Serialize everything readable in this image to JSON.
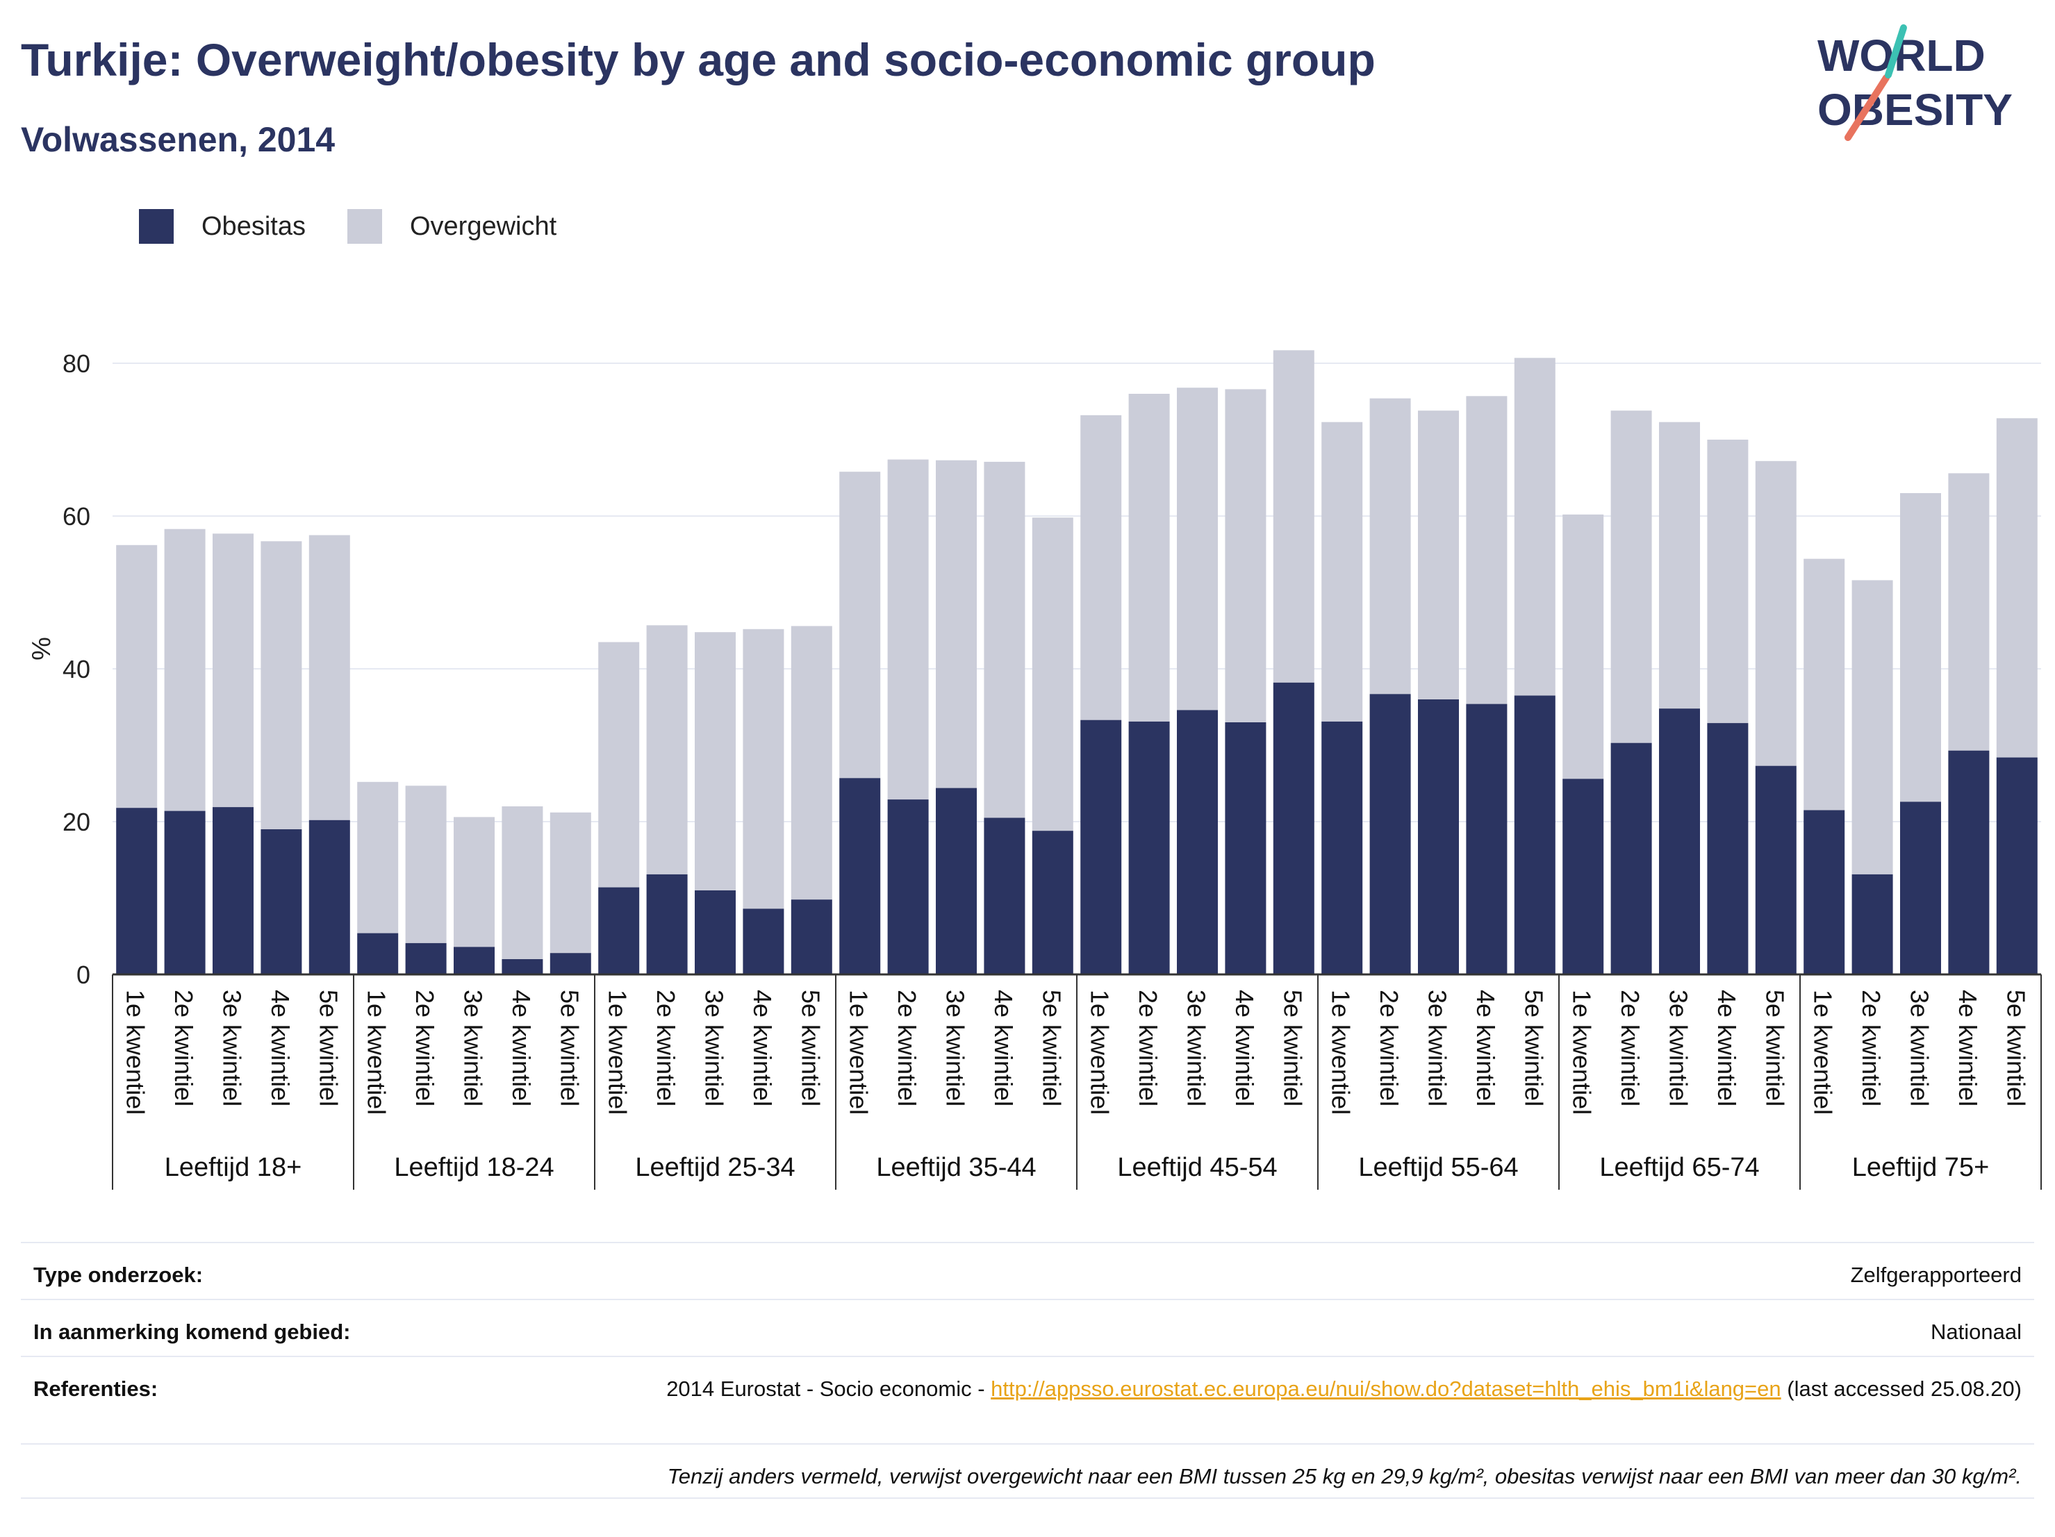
{
  "header": {
    "title": "Turkije: Overweight/obesity by age and socio-economic group",
    "subtitle": "Volwassenen, 2014"
  },
  "logo": {
    "line1": "WORLD",
    "line2": "OBESITY"
  },
  "legend": [
    {
      "label": "Obesitas",
      "color": "#2b3461"
    },
    {
      "label": "Overgewicht",
      "color": "#cbcdd9"
    }
  ],
  "chart_data": {
    "type": "bar",
    "stacked": true,
    "ylabel": "%",
    "ylim": [
      0,
      85
    ],
    "yticks": [
      0,
      20,
      40,
      60,
      80
    ],
    "grid": true,
    "legend_position": "top-left",
    "groups": [
      "Leeftijd 18+",
      "Leeftijd 18-24",
      "Leeftijd 25-34",
      "Leeftijd 35-44",
      "Leeftijd 45-54",
      "Leeftijd 55-64",
      "Leeftijd 65-74",
      "Leeftijd 75+"
    ],
    "categories": [
      "1e kwentiel",
      "2e kwintiel",
      "3e kwintiel",
      "4e kwintiel",
      "5e kwintiel"
    ],
    "series": [
      {
        "name": "Obesitas",
        "color": "#2b3461",
        "values": [
          [
            21.8,
            21.4,
            21.9,
            19.0,
            20.2
          ],
          [
            5.4,
            4.1,
            3.6,
            2.0,
            2.8
          ],
          [
            11.4,
            13.1,
            11.0,
            8.6,
            9.8
          ],
          [
            25.7,
            22.9,
            24.4,
            20.5,
            18.8
          ],
          [
            33.3,
            33.1,
            34.6,
            33.0,
            38.2
          ],
          [
            33.1,
            36.7,
            36.0,
            35.4,
            36.5
          ],
          [
            25.6,
            30.3,
            34.8,
            32.9,
            27.3
          ],
          [
            21.5,
            13.1,
            22.6,
            29.3,
            28.4
          ]
        ]
      },
      {
        "name": "Overgewicht",
        "color": "#cbcdd9",
        "values": [
          [
            34.4,
            36.9,
            35.8,
            37.7,
            37.3
          ],
          [
            19.8,
            20.6,
            17.0,
            20.0,
            18.4
          ],
          [
            32.1,
            32.6,
            33.8,
            36.6,
            35.8
          ],
          [
            40.1,
            44.5,
            42.9,
            46.6,
            41.0
          ],
          [
            39.9,
            42.9,
            42.2,
            43.6,
            43.5
          ],
          [
            39.2,
            38.7,
            37.8,
            40.3,
            44.2
          ],
          [
            34.6,
            43.5,
            37.5,
            37.1,
            39.9
          ],
          [
            32.9,
            38.5,
            40.4,
            36.3,
            44.4
          ]
        ]
      }
    ]
  },
  "info": {
    "rows": [
      {
        "label": "Type onderzoek:",
        "value": "Zelfgerapporteerd"
      },
      {
        "label": "In aanmerking komend gebied:",
        "value": "Nationaal"
      }
    ],
    "references": {
      "label": "Referenties:",
      "prefix": "2014 Eurostat - Socio economic - ",
      "link": "http://appsso.eurostat.ec.europa.eu/nui/show.do?dataset=hlth_ehis_bm1i&lang=en",
      "suffix": " (last accessed 25.08.20)"
    },
    "note": "Tenzij anders vermeld, verwijst overgewicht naar een BMI tussen 25 kg en 29,9 kg/m², obesitas verwijst naar een BMI van meer dan 30 kg/m²."
  }
}
